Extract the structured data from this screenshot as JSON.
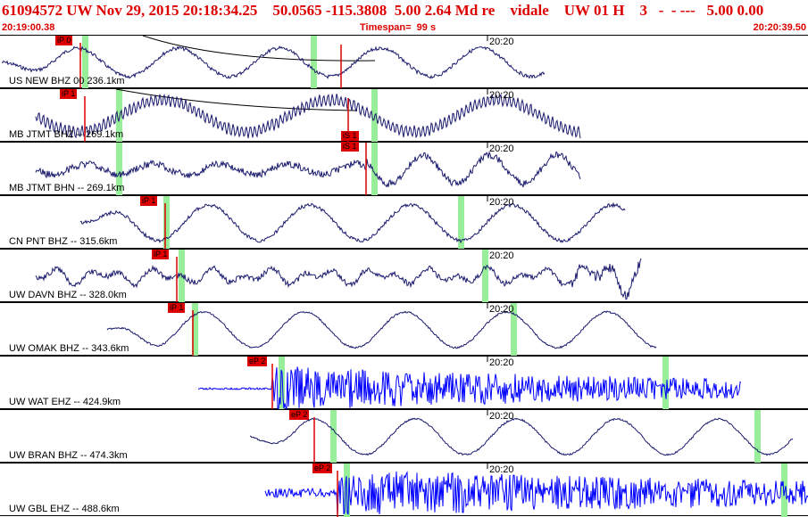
{
  "header": {
    "title": "61094572 UW Nov 29, 2015 20:18:34.25    50.0565 -115.3808  5.00 2.64 Md re    vidale    UW 01 H    3   -  - ---   5.00 0.00",
    "start_time": "20:19:00.38",
    "timespan": "Timespan=  99 s",
    "end_time": "20:20:39.50"
  },
  "colors": {
    "trace": "#1a1a6e",
    "trace_blue": "#0000ff",
    "pick": "#dd0000",
    "marker": "#99ee99"
  },
  "panels": [
    {
      "label": "US NEW BHZ 00 236.1km",
      "minute_label": "20:20",
      "pick": "iP 0",
      "trace_color": "dark"
    },
    {
      "label": "MB JTMT BHZ -- 269.1km",
      "minute_label": "20:20",
      "pick": "iP 1",
      "pick2": "iS 1",
      "trace_color": "dark"
    },
    {
      "label": "MB JTMT BHN -- 269.1km",
      "minute_label": "20:20",
      "pick": "iS 1",
      "trace_color": "dark"
    },
    {
      "label": "CN PNT BHZ -- 315.6km",
      "minute_label": "20:20",
      "pick": "iP 1",
      "trace_color": "dark"
    },
    {
      "label": "UW DAVN BHZ -- 328.0km",
      "minute_label": "20:20",
      "pick": "iP 1",
      "trace_color": "dark"
    },
    {
      "label": "UW OMAK BHZ -- 343.6km",
      "minute_label": "20:20",
      "pick": "iP 1",
      "trace_color": "dark"
    },
    {
      "label": "UW WAT EHZ -- 424.9km",
      "minute_label": "20:20",
      "pick": "eP 2",
      "trace_color": "blue"
    },
    {
      "label": "UW BRAN BHZ -- 474.3km",
      "minute_label": "20:20",
      "pick": "eP 2",
      "trace_color": "dark"
    },
    {
      "label": "UW GBL EHZ -- 488.6km",
      "minute_label": "20:20",
      "pick": "eP 2",
      "trace_color": "blue"
    }
  ]
}
